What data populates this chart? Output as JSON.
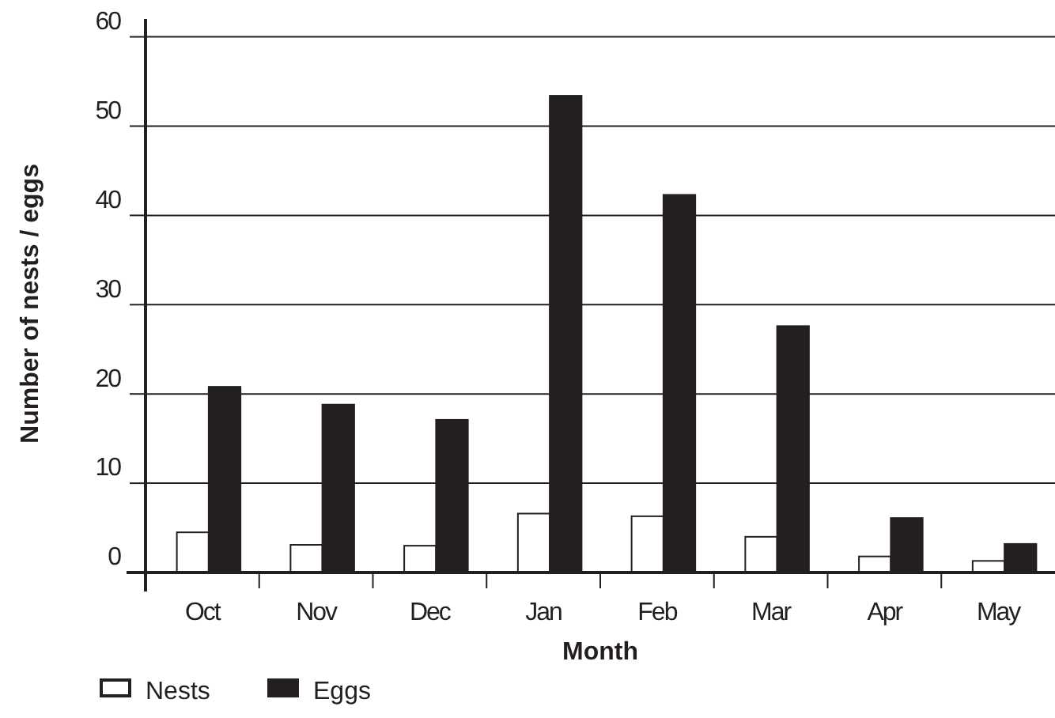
{
  "chart_data": {
    "type": "bar",
    "xlabel": "Month",
    "ylabel": "Number of nests / eggs",
    "categories": [
      "Oct",
      "Nov",
      "Dec",
      "Jan",
      "Feb",
      "Mar",
      "Apr",
      "May"
    ],
    "series": [
      {
        "name": "Nests",
        "color": "#ffffff",
        "values": [
          4.5,
          3.1,
          3,
          6.6,
          6.3,
          4,
          1.8,
          1.3
        ]
      },
      {
        "name": "Eggs",
        "color": "#231f20",
        "values": [
          20.8,
          18.8,
          17.1,
          53.4,
          42.3,
          27.6,
          6.1,
          3.2
        ]
      }
    ],
    "ylim": [
      0,
      62
    ],
    "yticks": [
      0,
      10,
      20,
      30,
      40,
      50,
      60
    ],
    "grid": "y",
    "legend": "bottom left"
  }
}
